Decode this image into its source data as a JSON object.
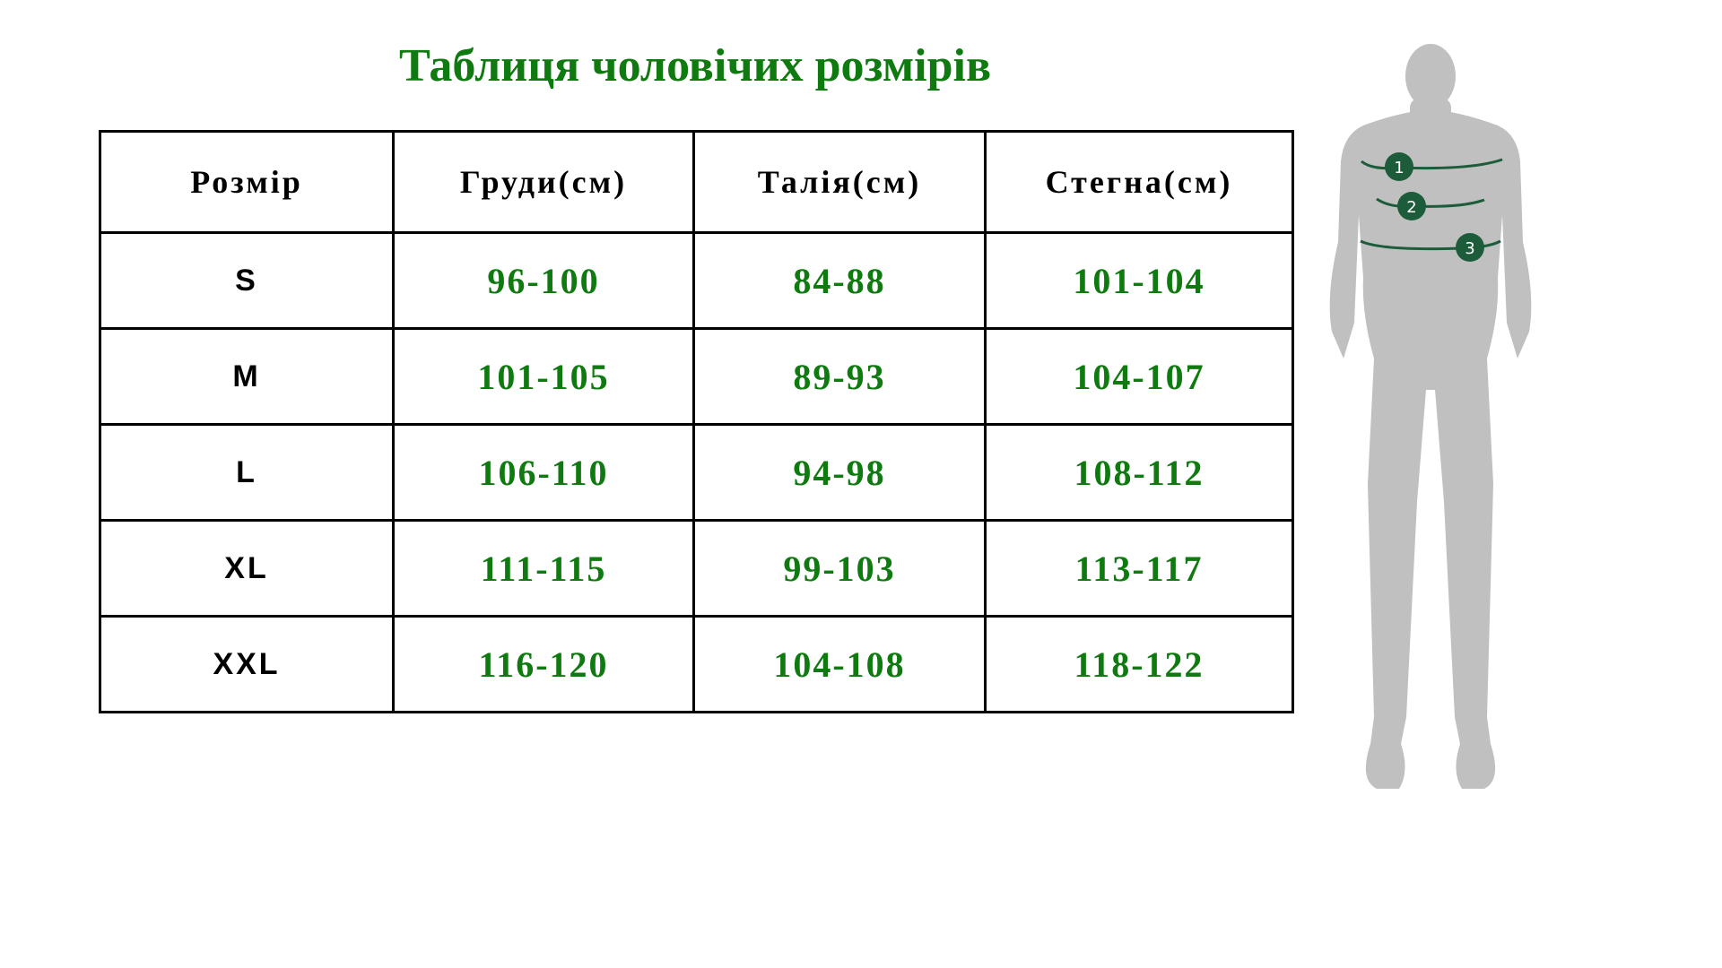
{
  "title": "Таблиця чоловічих розмірів",
  "table": {
    "headers": [
      "Розмір",
      "Груди(см)",
      "Талія(см)",
      "Стегна(см)"
    ],
    "rows": [
      [
        "S",
        "96-100",
        "84-88",
        "101-104"
      ],
      [
        "M",
        "101-105",
        "89-93",
        "104-107"
      ],
      [
        "L",
        "106-110",
        "94-98",
        "108-112"
      ],
      [
        "XL",
        "111-115",
        "99-103",
        "113-117"
      ],
      [
        "XXL",
        "116-120",
        "104-108",
        "118-122"
      ]
    ]
  },
  "figure": {
    "markers": [
      "1",
      "2",
      "3"
    ],
    "body_color": "#c0c0c0",
    "marker_color": "#1d5c3a"
  },
  "colors": {
    "accent": "#0f7a0f",
    "border": "#000000"
  }
}
